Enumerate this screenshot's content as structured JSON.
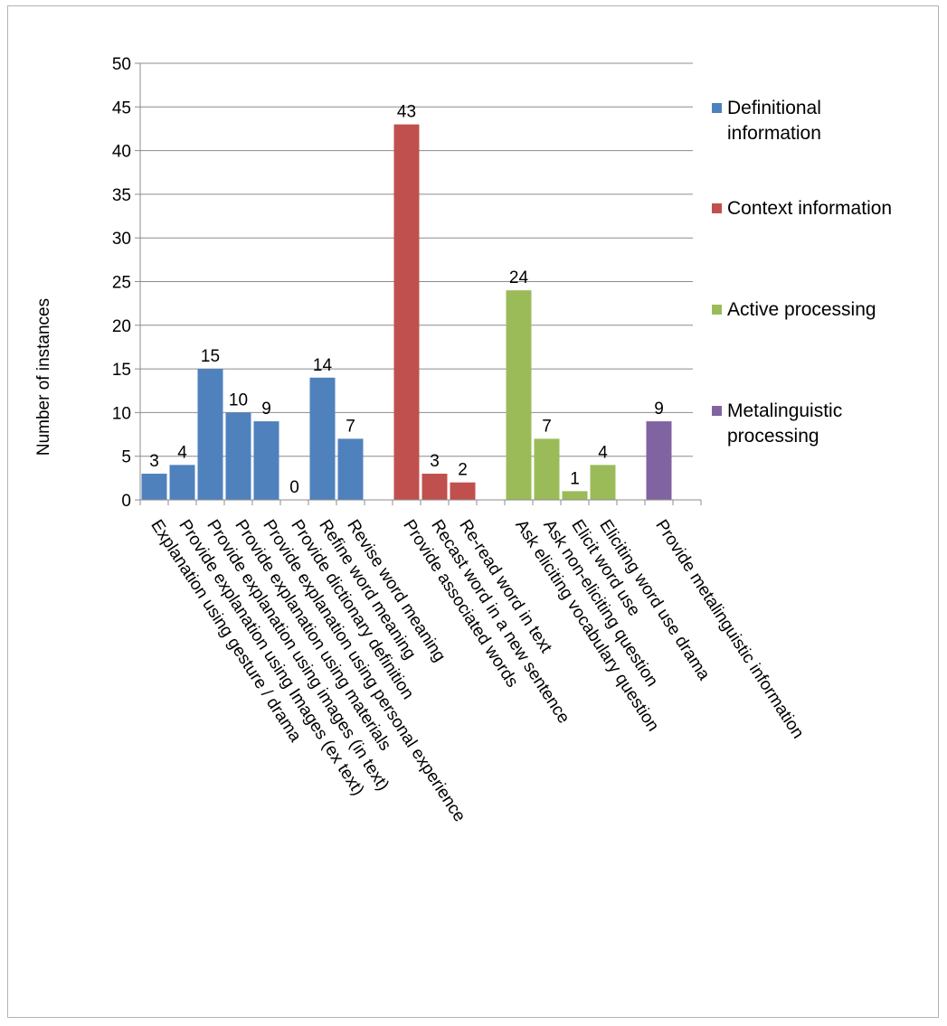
{
  "chart_data": {
    "type": "bar",
    "title": "",
    "xlabel": "",
    "ylabel": "Number of instances",
    "ylim": [
      0,
      50
    ],
    "yticks": [
      "0",
      "5",
      "10",
      "15",
      "20",
      "25",
      "30",
      "35",
      "40",
      "45",
      "50"
    ],
    "grid": "horizontal",
    "legend_position": "right",
    "colors": {
      "Definitional information": "#4f81bd",
      "Context information": "#c0504d",
      "Active processing": "#9bbb59",
      "Metalinguistic processing": "#8064a2"
    },
    "series": [
      {
        "name": "Definitional information",
        "categories": [
          "Explanation using gesture / drama",
          "Provide explanation using Images (ex text)",
          "Provide explanation using images (in text)",
          "Provide explanation using materials",
          "Provide explanation using personal  experience",
          "Provide dictionary definition",
          "Refine word meaning",
          "Revise word meaning"
        ],
        "values": [
          3,
          4,
          15,
          10,
          9,
          0,
          14,
          7
        ]
      },
      {
        "name": "Context information",
        "categories": [
          "Provide associated words",
          "Recast word in a new sentence",
          "Re-read word in text"
        ],
        "values": [
          43,
          3,
          2
        ]
      },
      {
        "name": "Active processing",
        "categories": [
          "Ask eliciting vocabulary question",
          "Ask non-eliciting question",
          "Elicit word use",
          "Eliciting word use drama"
        ],
        "values": [
          24,
          7,
          1,
          4
        ]
      },
      {
        "name": "Metalinguistic processing",
        "categories": [
          "Provide metalinguistic information"
        ],
        "values": [
          9
        ]
      }
    ],
    "legend": [
      {
        "lines": [
          "Definitional",
          "information"
        ],
        "color": "#4f81bd"
      },
      {
        "lines": [
          "Context information"
        ],
        "color": "#c0504d"
      },
      {
        "lines": [
          "Active processing"
        ],
        "color": "#9bbb59"
      },
      {
        "lines": [
          "Metalinguistic",
          "processing"
        ],
        "color": "#8064a2"
      }
    ]
  }
}
